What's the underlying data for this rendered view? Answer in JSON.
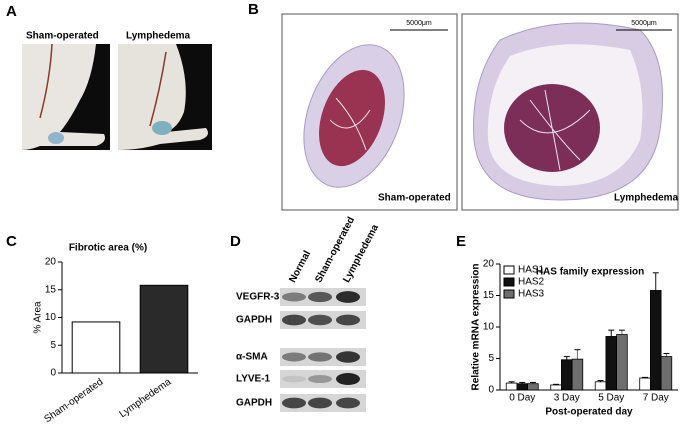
{
  "panels": {
    "a": "A",
    "b": "B",
    "c": "C",
    "d": "D",
    "e": "E"
  },
  "photos": [
    "Sham-operated",
    "Lymphedema"
  ],
  "sections": [
    {
      "label": "Sham-operated",
      "scale": "5000μm"
    },
    {
      "label": "Lymphedema",
      "scale": "5000μm"
    }
  ],
  "blot": {
    "lanes": [
      "Normal",
      "Sham-operated",
      "Lymphedema"
    ],
    "rows": [
      "VEGFR-3",
      "GAPDH",
      "α-SMA",
      "LYVE-1",
      "GAPDH"
    ]
  },
  "chart_data": [
    {
      "type": "bar",
      "title": "Fibrotic area  (%)",
      "y_label": "% Area",
      "categories": [
        "Sham-operated",
        "Lymphedema"
      ],
      "values": [
        9.2,
        15.8
      ],
      "colors": [
        "#ffffff",
        "#2a2a2a"
      ],
      "ylim": [
        0,
        20
      ],
      "yticks": [
        0,
        5,
        10,
        15,
        20
      ]
    },
    {
      "type": "bar",
      "title": "HAS family expression",
      "x_label": "Post-operated day",
      "y_label": "Relative mRNA expression",
      "categories": [
        "0 Day",
        "3 Day",
        "5 Day",
        "7 Day"
      ],
      "series": [
        {
          "name": "HAS1",
          "color": "#ffffff",
          "values": [
            1.1,
            0.8,
            1.3,
            1.9
          ],
          "errors": [
            0.2,
            0.1,
            0.2,
            0.1
          ]
        },
        {
          "name": "HAS2",
          "color": "#111111",
          "values": [
            1.0,
            4.8,
            8.5,
            15.8
          ],
          "errors": [
            0.2,
            0.5,
            1.0,
            2.8
          ]
        },
        {
          "name": "HAS3",
          "color": "#6e6e6e",
          "values": [
            1.0,
            4.9,
            8.8,
            5.3
          ],
          "errors": [
            0.2,
            1.5,
            0.7,
            0.5
          ]
        }
      ],
      "ylim": [
        0,
        20
      ],
      "yticks": [
        0,
        5,
        10,
        15,
        20
      ],
      "legend": "upper-left"
    }
  ]
}
